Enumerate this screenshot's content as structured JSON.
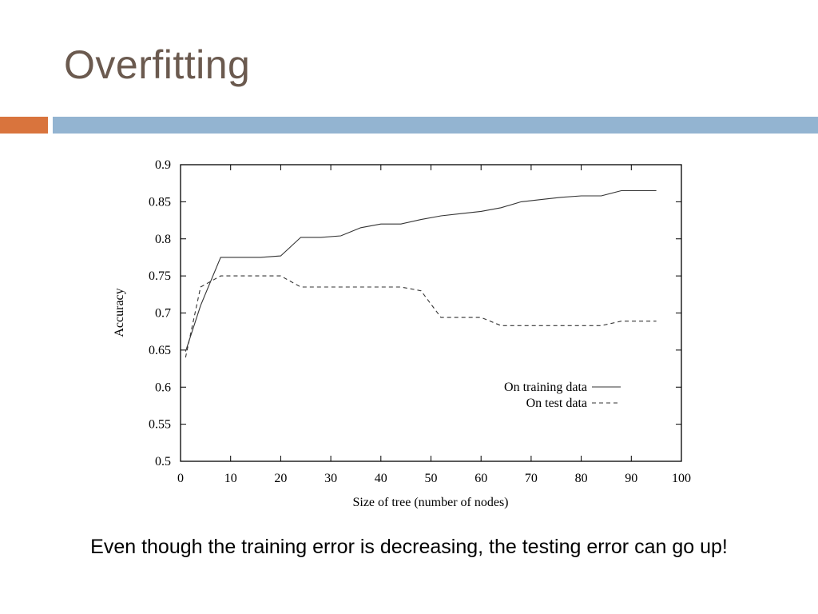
{
  "slide": {
    "title": "Overfitting",
    "caption": "Even though the training error is decreasing, the testing error can go up!",
    "colors": {
      "title": "#6b5a4f",
      "accent_bar": "#d9743d",
      "main_bar": "#93b4d1"
    }
  },
  "chart_data": {
    "type": "line",
    "title": "",
    "xlabel": "Size of tree (number of nodes)",
    "ylabel": "Accuracy",
    "xlim": [
      0,
      100
    ],
    "ylim": [
      0.5,
      0.9
    ],
    "xticks": [
      0,
      10,
      20,
      30,
      40,
      50,
      60,
      70,
      80,
      90,
      100
    ],
    "yticks": [
      0.5,
      0.55,
      0.6,
      0.65,
      0.7,
      0.75,
      0.8,
      0.85,
      0.9
    ],
    "legend_position": "right",
    "series": [
      {
        "name": "On training data",
        "style": "solid",
        "x": [
          1,
          4,
          8,
          12,
          16,
          20,
          24,
          28,
          32,
          36,
          40,
          44,
          48,
          52,
          56,
          60,
          64,
          68,
          72,
          76,
          80,
          84,
          88,
          92,
          95
        ],
        "y": [
          0.648,
          0.71,
          0.775,
          0.775,
          0.775,
          0.777,
          0.802,
          0.802,
          0.804,
          0.815,
          0.82,
          0.82,
          0.826,
          0.831,
          0.834,
          0.837,
          0.842,
          0.85,
          0.853,
          0.856,
          0.858,
          0.858,
          0.865,
          0.865,
          0.865
        ]
      },
      {
        "name": "On test data",
        "style": "dashed",
        "x": [
          1,
          4,
          8,
          12,
          16,
          20,
          24,
          28,
          32,
          36,
          40,
          44,
          48,
          52,
          56,
          60,
          64,
          68,
          72,
          76,
          80,
          84,
          88,
          92,
          95
        ],
        "y": [
          0.64,
          0.735,
          0.75,
          0.75,
          0.75,
          0.75,
          0.735,
          0.735,
          0.735,
          0.735,
          0.735,
          0.735,
          0.73,
          0.694,
          0.694,
          0.694,
          0.683,
          0.683,
          0.683,
          0.683,
          0.683,
          0.683,
          0.689,
          0.689,
          0.689
        ]
      }
    ]
  }
}
